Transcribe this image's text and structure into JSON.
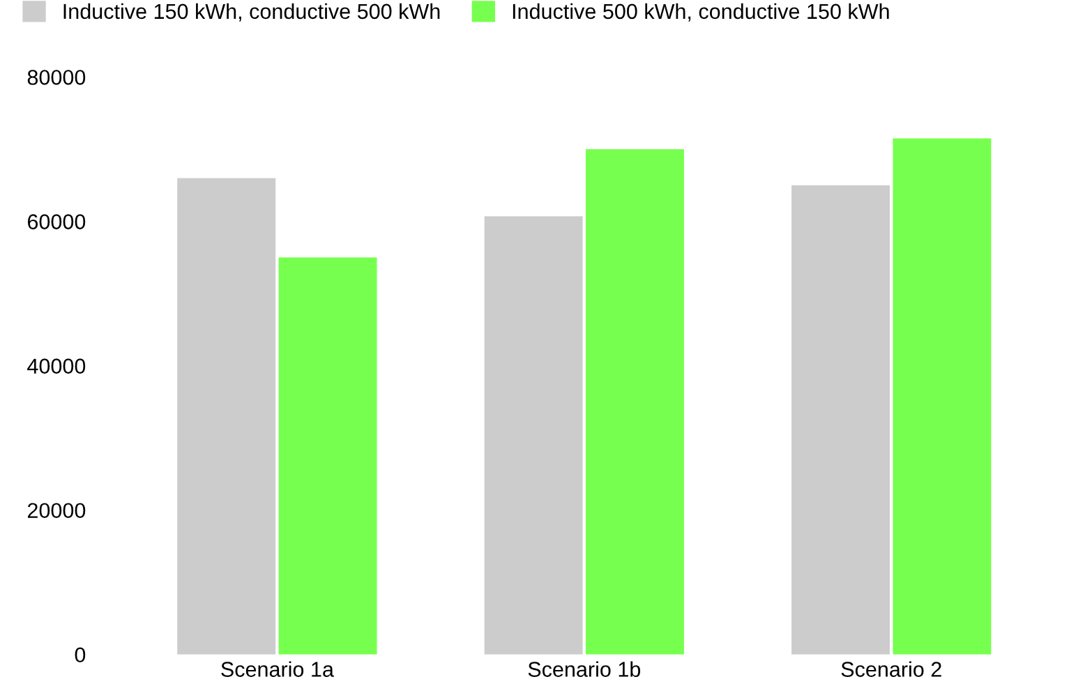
{
  "chart_data": {
    "type": "bar",
    "categories": [
      "Scenario 1a",
      "Scenario 1b",
      "Scenario 2"
    ],
    "series": [
      {
        "name": "Inductive 150 kWh, conductive 500 kWh",
        "color": "#cccccc",
        "values": [
          66000,
          60700,
          65000
        ]
      },
      {
        "name": "Inductive 500 kWh, conductive 150 kWh",
        "color": "#77ff4f",
        "values": [
          55000,
          70000,
          71500
        ]
      }
    ],
    "ylim": [
      0,
      80000
    ],
    "yticks": [
      0,
      20000,
      40000,
      60000,
      80000
    ],
    "grid": false,
    "legend": "top left"
  }
}
